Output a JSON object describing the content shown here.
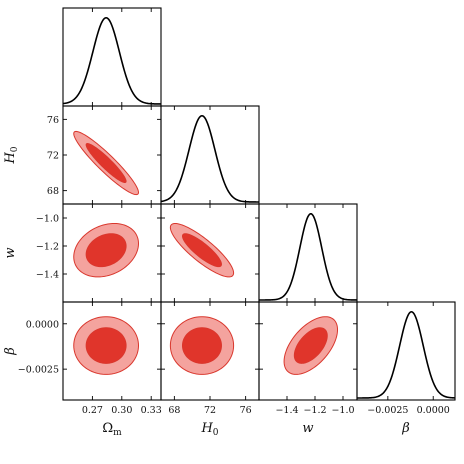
{
  "chart_data": {
    "type": "corner",
    "parameters": [
      {
        "id": "om",
        "label": "Ω",
        "sub": "m",
        "italic": false,
        "range": [
          0.24,
          0.34
        ],
        "ticks": [
          0.27,
          0.3,
          0.33
        ],
        "tick_labels": [
          "0.27",
          "0.30",
          "0.33"
        ],
        "mean": 0.284,
        "sigma": 0.0135
      },
      {
        "id": "h0",
        "label": "H",
        "sub": "0",
        "italic": true,
        "range": [
          66.5,
          77.5
        ],
        "ticks": [
          68,
          72,
          76
        ],
        "tick_labels": [
          "68",
          "72",
          "76"
        ],
        "mean": 71.1,
        "sigma": 1.45
      },
      {
        "id": "w",
        "label": "w",
        "sub": "",
        "italic": true,
        "range": [
          -1.6,
          -0.9
        ],
        "ticks": [
          -1.4,
          -1.2,
          -1.0
        ],
        "tick_labels": [
          "−1.4",
          "−1.2",
          "−1.0"
        ],
        "mean": -1.23,
        "sigma": 0.078
      },
      {
        "id": "beta",
        "label": "β",
        "sub": "",
        "italic": true,
        "range": [
          -0.0042,
          0.0012
        ],
        "ticks": [
          -0.0025,
          0.0
        ],
        "tick_labels": [
          "−0.0025",
          "0.0000"
        ],
        "mean": -0.0012,
        "sigma": 0.00065
      }
    ],
    "correlations": {
      "h0|om": -0.93,
      "w|om": 0.25,
      "w|h0": -0.85,
      "beta|om": 0.0,
      "beta|h0": 0.0,
      "beta|w": 0.55
    },
    "contour_levels": [
      "68%",
      "95%"
    ],
    "colors": {
      "inner_fill": "#e0352b",
      "outer_fill": "#f4a39e",
      "contour_stroke": "#d9372d",
      "curve": "#000000",
      "frame": "#000000"
    }
  }
}
